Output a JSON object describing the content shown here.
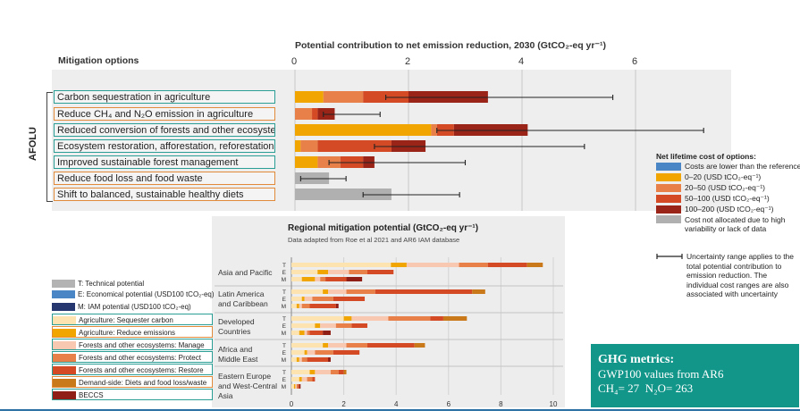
{
  "top_chart": {
    "title": "Potential contribution to net emission reduction, 2030 (GtCO₂-eq yr⁻¹)",
    "header_left": "Mitigation options",
    "sector_label": "AFOLU",
    "ticks": [
      "0",
      "2",
      "4",
      "6"
    ],
    "options": [
      {
        "label": "Carbon sequestration in agriculture",
        "frame": "teal"
      },
      {
        "label": "Reduce CH₄ and N₂O emission in agriculture",
        "frame": "orange"
      },
      {
        "label": "Reduced conversion of forests and other ecosystems",
        "frame": "teal"
      },
      {
        "label": "Ecosystem restoration, afforestation, reforestation",
        "frame": "teal"
      },
      {
        "label": "Improved sustainable forest management",
        "frame": "teal"
      },
      {
        "label": "Reduce food loss and food waste",
        "frame": "orange"
      },
      {
        "label": "Shift to balanced, sustainable healthy diets",
        "frame": "orange"
      }
    ]
  },
  "cost_legend": {
    "title": "Net lifetime cost of options:",
    "items": [
      {
        "label": "Costs are lower than the reference",
        "color": "#4a86c5"
      },
      {
        "label": "0–20 (USD tCO₂-eq⁻¹)",
        "color": "#f0a500"
      },
      {
        "label": "20–50 (USD tCO₂-eq⁻¹)",
        "color": "#e8804a"
      },
      {
        "label": "50–100 (USD tCO₂-eq⁻¹)",
        "color": "#d44a25"
      },
      {
        "label": "100–200 (USD tCO₂-eq⁻¹)",
        "color": "#9b2418"
      },
      {
        "label": "Cost not allocated due to high variability or lack of data",
        "color": "#b0b0b0"
      }
    ],
    "uncertainty_note": "Uncertainty range applies to the total potential contribution to emission reduction. The individual cost ranges are also associated with uncertainty"
  },
  "bottom_chart": {
    "title": "Regional mitigation potential (GtCO₂-eq yr⁻¹)",
    "subtitle": "Data adapted from Roe et al 2021 and AR6 IAM database",
    "regions": [
      "Asia and Pacific",
      "Latin America and Caribbean",
      "Developed Countries",
      "Africa and Middle East",
      "Eastern Europe and West-Central Asia"
    ],
    "row_letters": [
      "T",
      "E",
      "M"
    ],
    "ticks": [
      "0",
      "2",
      "4",
      "6",
      "8",
      "10"
    ]
  },
  "category_legend": [
    {
      "label": "T: Technical potential",
      "color": "#b3b3b3",
      "frame": ""
    },
    {
      "label": "E: Economical potential (USD100 tCO₂-eq)",
      "color": "#4a86c5",
      "frame": ""
    },
    {
      "label": "M: IAM potential (USD100 tCO₂-eq)",
      "color": "#26366e",
      "frame": ""
    },
    {
      "label": "Agriculture: Sequester carbon",
      "color": "#fde3b0",
      "frame": "teal"
    },
    {
      "label": "Agriculture: Reduce emissions",
      "color": "#f0a500",
      "frame": "orange"
    },
    {
      "label": "Forests and other ecosystems: Manage",
      "color": "#f8c9b0",
      "frame": "teal"
    },
    {
      "label": "Forests and other ecosystems: Protect",
      "color": "#e8804a",
      "frame": "teal"
    },
    {
      "label": "Forests and other ecosystems: Restore",
      "color": "#d44a25",
      "frame": "teal"
    },
    {
      "label": "Demand-side: Diets and food loss/waste",
      "color": "#c9781a",
      "frame": "orange"
    },
    {
      "label": "BECCS",
      "color": "#8f1f16",
      "frame": "teal"
    }
  ],
  "ghg_box": {
    "title": "GHG metrics:",
    "line1": "GWP100 values from AR6",
    "ch4_label": "CH₄= 27",
    "n2o_label": "N₂O= 263"
  },
  "chart_data": [
    {
      "type": "bar",
      "title": "Potential contribution to net emission reduction, 2030 (GtCO₂-eq yr⁻¹)",
      "xlim": [
        0,
        7
      ],
      "orientation": "horizontal-stacked",
      "categories": [
        "Carbon sequestration in agriculture",
        "Reduce CH₄ and N₂O emission in agriculture",
        "Reduced conversion of forests and other ecosystems",
        "Ecosystem restoration, afforestation, reforestation",
        "Improved sustainable forest management",
        "Reduce food loss and food waste",
        "Shift to balanced, sustainable healthy diets"
      ],
      "series": [
        {
          "name": "Costs are lower than the reference",
          "color": "#4a86c5",
          "values": [
            0,
            0,
            0,
            0,
            0,
            0,
            0
          ]
        },
        {
          "name": "0–20 (USD tCO₂-eq⁻¹)",
          "color": "#f0a500",
          "values": [
            0.5,
            0.0,
            2.4,
            0.1,
            0.4,
            0,
            0
          ]
        },
        {
          "name": "20–50 (USD tCO₂-eq⁻¹)",
          "color": "#e8804a",
          "values": [
            0.7,
            0.3,
            0.1,
            0.3,
            0.4,
            0,
            0
          ]
        },
        {
          "name": "50–100 (USD tCO₂-eq⁻¹)",
          "color": "#d44a25",
          "values": [
            0.8,
            0.1,
            0.3,
            1.3,
            0.4,
            0,
            0
          ]
        },
        {
          "name": "100–200 (USD tCO₂-eq⁻¹)",
          "color": "#9b2418",
          "values": [
            1.4,
            0.3,
            1.3,
            0.6,
            0.2,
            0,
            0
          ]
        },
        {
          "name": "Cost not allocated due to high variability or lack of data",
          "color": "#b0b0b0",
          "values": [
            0,
            0,
            0,
            0,
            0,
            0.6,
            1.7
          ]
        }
      ],
      "uncertainty": [
        [
          1.6,
          5.6
        ],
        [
          0.5,
          1.5
        ],
        [
          2.5,
          7.2
        ],
        [
          1.4,
          5.1
        ],
        [
          0.6,
          3.0
        ],
        [
          0.1,
          0.9
        ],
        [
          1.2,
          2.9
        ]
      ]
    },
    {
      "type": "bar",
      "title": "Regional mitigation potential (GtCO₂-eq yr⁻¹)",
      "orientation": "horizontal-stacked",
      "xlim": [
        0,
        10
      ],
      "categories": [
        "Asia and Pacific T",
        "Asia and Pacific E",
        "Asia and Pacific M",
        "Latin America and Caribbean T",
        "Latin America and Caribbean E",
        "Latin America and Caribbean M",
        "Developed Countries T",
        "Developed Countries E",
        "Developed Countries M",
        "Africa and Middle East T",
        "Africa and Middle East E",
        "Africa and Middle East M",
        "Eastern Europe and West-Central Asia T",
        "Eastern Europe and West-Central Asia E",
        "Eastern Europe and West-Central Asia M"
      ],
      "series": [
        {
          "name": "Agriculture: Sequester carbon",
          "color": "#fde3b0",
          "values": [
            3.8,
            1.0,
            0.4,
            1.2,
            0.4,
            0.2,
            2.0,
            0.9,
            0.3,
            1.2,
            0.5,
            0.2,
            0.7,
            0.3,
            0.1
          ]
        },
        {
          "name": "Agriculture: Reduce emissions",
          "color": "#f0a500",
          "values": [
            0.6,
            0.4,
            0.5,
            0.2,
            0.1,
            0.1,
            0.3,
            0.2,
            0.2,
            0.2,
            0.1,
            0.1,
            0.2,
            0.1,
            0.05
          ]
        },
        {
          "name": "Forests and other ecosystems: Manage",
          "color": "#f8c9b0",
          "values": [
            2.0,
            0.8,
            0.2,
            0.7,
            0.3,
            0.1,
            1.4,
            0.6,
            0.1,
            0.7,
            0.3,
            0.1,
            0.6,
            0.2,
            0.05
          ]
        },
        {
          "name": "Forests and other ecosystems: Protect",
          "color": "#e8804a",
          "values": [
            1.1,
            0.7,
            0.2,
            1.1,
            0.8,
            0.3,
            1.6,
            0.6,
            0.1,
            0.8,
            0.7,
            0.2,
            0.3,
            0.2,
            0.05
          ]
        },
        {
          "name": "Forests and other ecosystems: Restore",
          "color": "#d44a25",
          "values": [
            1.5,
            1.0,
            0.8,
            3.7,
            1.2,
            1.0,
            0.5,
            0.6,
            0.5,
            1.8,
            1.0,
            0.8,
            0.2,
            0.1,
            0.05
          ]
        },
        {
          "name": "Demand-side: Diets and food loss/waste",
          "color": "#c9781a",
          "values": [
            0.6,
            0,
            0,
            0.5,
            0,
            0,
            0.9,
            0,
            0,
            0.4,
            0,
            0,
            0.1,
            0,
            0
          ]
        },
        {
          "name": "BECCS",
          "color": "#8f1f16",
          "values": [
            0,
            0,
            0.6,
            0,
            0,
            0.1,
            0,
            0,
            0.3,
            0,
            0,
            0.1,
            0,
            0,
            0.05
          ]
        }
      ]
    }
  ]
}
